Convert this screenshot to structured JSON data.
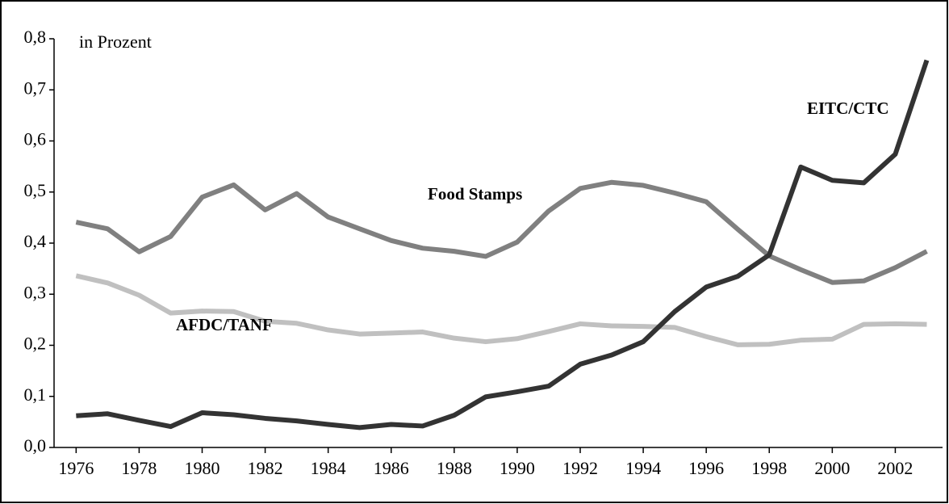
{
  "chart_data": {
    "type": "line",
    "annotation": "in Prozent",
    "x": [
      1976,
      1977,
      1978,
      1979,
      1980,
      1981,
      1982,
      1983,
      1984,
      1985,
      1986,
      1987,
      1988,
      1989,
      1990,
      1991,
      1992,
      1993,
      1994,
      1995,
      1996,
      1997,
      1998,
      1999,
      2000,
      2001,
      2002,
      2003
    ],
    "series": [
      {
        "name": "Food Stamps",
        "color": "#808080",
        "values": [
          0.441,
          0.428,
          0.383,
          0.413,
          0.49,
          0.514,
          0.465,
          0.497,
          0.451,
          0.428,
          0.405,
          0.39,
          0.384,
          0.374,
          0.402,
          0.463,
          0.507,
          0.519,
          0.513,
          0.498,
          0.481,
          0.427,
          0.375,
          0.348,
          0.323,
          0.326,
          0.352,
          0.384
        ]
      },
      {
        "name": "AFDC/TANF",
        "color": "#c0c0c0",
        "values": [
          0.336,
          0.322,
          0.298,
          0.263,
          0.267,
          0.266,
          0.247,
          0.243,
          0.23,
          0.222,
          0.224,
          0.226,
          0.214,
          0.207,
          0.213,
          0.227,
          0.242,
          0.238,
          0.237,
          0.235,
          0.217,
          0.201,
          0.202,
          0.21,
          0.212,
          0.241,
          0.242,
          0.241
        ]
      },
      {
        "name": "EITC/CTC",
        "color": "#333333",
        "values": [
          0.062,
          0.066,
          0.053,
          0.041,
          0.068,
          0.064,
          0.057,
          0.052,
          0.045,
          0.039,
          0.045,
          0.042,
          0.063,
          0.099,
          0.109,
          0.12,
          0.163,
          0.181,
          0.207,
          0.266,
          0.314,
          0.335,
          0.377,
          0.549,
          0.523,
          0.518,
          0.574,
          0.758
        ]
      }
    ],
    "xlim": [
      1975.3,
      2003.5
    ],
    "xticks": [
      1976,
      1978,
      1980,
      1982,
      1984,
      1986,
      1988,
      1990,
      1992,
      1994,
      1996,
      1998,
      2000,
      2002
    ],
    "ylim": [
      0,
      0.8
    ],
    "yticks": [
      {
        "value": 0,
        "label": "0,0"
      },
      {
        "value": 0.1,
        "label": "0,1"
      },
      {
        "value": 0.2,
        "label": "0,2"
      },
      {
        "value": 0.3,
        "label": "0,3"
      },
      {
        "value": 0.4,
        "label": "0,4"
      },
      {
        "value": 0.5,
        "label": "0,5"
      },
      {
        "value": 0.6,
        "label": "0,6"
      },
      {
        "value": 0.7,
        "label": "0,7"
      },
      {
        "value": 0.8,
        "label": "0,8"
      }
    ],
    "grid": false
  }
}
